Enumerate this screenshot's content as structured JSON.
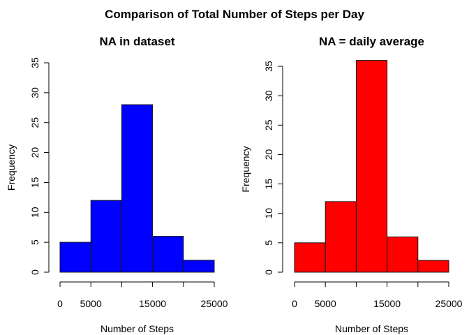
{
  "title": "Comparison of Total Number of Steps per Day",
  "chart_data": [
    {
      "type": "bar",
      "title": "NA in dataset",
      "xlabel": "Number of Steps",
      "ylabel": "Frequency",
      "bin_edges": [
        0,
        5000,
        10000,
        15000,
        20000,
        25000
      ],
      "values": [
        5,
        12,
        28,
        6,
        2
      ],
      "xlim": [
        0,
        25000
      ],
      "ylim": [
        0,
        35
      ],
      "xticks": [
        0,
        5000,
        10000,
        15000,
        20000,
        25000
      ],
      "xtick_labels": [
        "0",
        "5000",
        "",
        "15000",
        "",
        "25000"
      ],
      "yticks": [
        0,
        5,
        10,
        15,
        20,
        25,
        30,
        35
      ],
      "ytick_labels": [
        "0",
        "5",
        "10",
        "15",
        "20",
        "25",
        "30",
        "35"
      ],
      "color": "#0000ff",
      "grid": false
    },
    {
      "type": "bar",
      "title": "NA = daily average",
      "xlabel": "Number of Steps",
      "ylabel": "Frequency",
      "bin_edges": [
        0,
        5000,
        10000,
        15000,
        20000,
        25000
      ],
      "values": [
        5,
        12,
        36,
        6,
        2
      ],
      "xlim": [
        0,
        25000
      ],
      "ylim": [
        0,
        35
      ],
      "xticks": [
        0,
        5000,
        10000,
        15000,
        20000,
        25000
      ],
      "xtick_labels": [
        "0",
        "5000",
        "",
        "15000",
        "",
        "25000"
      ],
      "yticks": [
        0,
        5,
        10,
        15,
        20,
        25,
        30,
        35
      ],
      "ytick_labels": [
        "0",
        "5",
        "10",
        "15",
        "20",
        "25",
        "30",
        "35"
      ],
      "color": "#ff0000",
      "grid": false
    }
  ]
}
